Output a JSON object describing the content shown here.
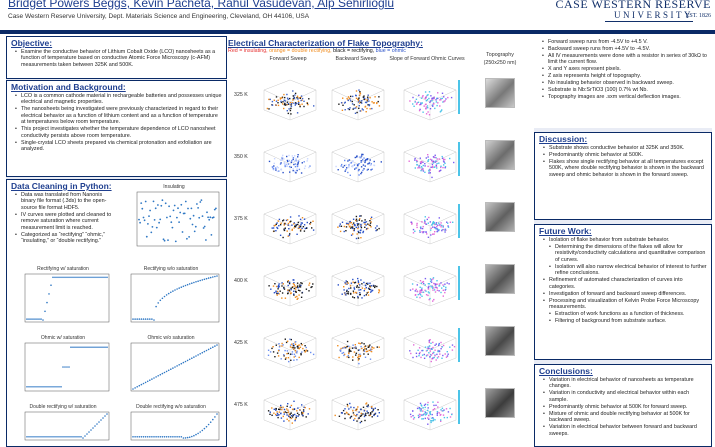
{
  "header": {
    "title": "Bridget Powers Beggs, Kevin Pacheta, Rahul Vasudevan, Alp Sehirlioglu",
    "affiliation": "Case Western Reserve University, Dept. Materials Science and Engineering, Cleveland, OH 44106, USA",
    "logo_top": "CASE WESTERN RESERVE",
    "logo_bottom": "UNIVERSITY",
    "logo_est": "EST. 1826"
  },
  "left": {
    "objective": {
      "heading": "Objective:",
      "items": [
        "Examine the conductive behavior of Lithium Cobalt Oxide (LCO) nanosheets as a function of temperature based on conductive Atomic Force Microscopy (c-AFM) measurements taken between 325K and 500K."
      ]
    },
    "motivation": {
      "heading": "Motivation and Background:",
      "items": [
        "LCO is a common cathode material in rechargeable batteries and possesses unique electrical and magnetic properties.",
        "The nanosheets being investigated were previously characterized in regard to their electrical behavior as a function of lithium content and as a function of temperature at temperatures below room temperature.",
        "This project investigates whether the temperature dependence of LCO nanosheet conductivity persists above room temperature.",
        "Single-crystal LCO sheets prepared via chemical protonation and exfoliation are analyzed."
      ]
    },
    "cleaning": {
      "heading": "Data Cleaning in Python:",
      "items": [
        "Data was translated from Nanonis binary file format (.3ds) to the open-source file format HDF5.",
        "IV curves were plotted and cleaned to remove saturation where current measurement limit is reached.",
        "Categorized as “rectifying” “ohmic,” “insulating,” or “double rectifying.”"
      ],
      "plots": {
        "insulating": "Insulating",
        "rect_sat": "Rectifying w/ saturation",
        "rect_nosat": "Rectifying w/o saturation",
        "ohmic_sat": "Ohmic w/ saturation",
        "ohmic_nosat": "Ohmic w/o saturation",
        "dbl_sat": "Double rectifying w/ saturation",
        "dbl_nosat": "Double rectifying w/o saturation"
      },
      "xlabel": "Voltage"
    }
  },
  "middle": {
    "title": "Electrical Characterization of Flake Topography:",
    "legend": [
      {
        "text": "Red = insulating,",
        "color": "#e63232"
      },
      {
        "text": " orange = double rectifying,",
        "color": "#f08c1e"
      },
      {
        "text": " black = rectifying,",
        "color": "#111111"
      },
      {
        "text": " blue = ohmic",
        "color": "#2850c8"
      }
    ],
    "columns": [
      "Forward Sweep",
      "Backward Sweep",
      "Slope of Forward Ohmic Curves",
      "Topography"
    ],
    "topo_sub": "(250x250 nm)",
    "temperatures": [
      "325 K",
      "350 K",
      "375 K",
      "400 K",
      "425 K",
      "475 K"
    ]
  },
  "right": {
    "notes": [
      "Forward sweep runs from -4.5V to +4.5 V.",
      "Backward sweep runs from +4.5V to -4.5V.",
      "All IV measurements were done with a resistor in series of 30kΩ to limit the current flow.",
      "X and Y axes represent pixels.",
      "Z axis represents height of topography.",
      "No insulating behavior observed in backward sweep.",
      "Substrate is Nb:SrTiO3 (100) 0.7% wt Nb.",
      "Topography images are .sxm vertical deflection images."
    ],
    "discussion": {
      "heading": "Discussion:",
      "items": [
        "Substrate shows conductive behavior at 325K and 350K.",
        "Predominantly ohmic behavior at 500K.",
        "Flakes show single rectifying behavior at all temperatures except 500K, where double rectifying behavior is shown in the backward sweep and ohmic behavior is shown in the forward sweep."
      ]
    },
    "future": {
      "heading": "Future Work:",
      "items": [
        {
          "t": "Isolation of flake behavior from substrate behavior.",
          "sub": false
        },
        {
          "t": "Determining the dimensions of the flakes will allow for resistivity/conductivity calculations and quantitative comparison of curves.",
          "sub": true
        },
        {
          "t": "Isolation will also narrow electrical behavior of interest to further refine conclusions.",
          "sub": true
        },
        {
          "t": "Refinement of automated characterization of curves into categories.",
          "sub": false
        },
        {
          "t": "Investigation of forward and backward sweep differences.",
          "sub": false
        },
        {
          "t": "Processing and visualization of Kelvin Probe Force Microscopy measurements.",
          "sub": false
        },
        {
          "t": "Extraction of work functions as a function of thickness.",
          "sub": true
        },
        {
          "t": "Filtering of background from substrate surface.",
          "sub": true
        }
      ]
    },
    "conclusions": {
      "heading": "Conclusions:",
      "items": [
        "Variation in electrical behavior of nanosheets as temperature changes.",
        "Variation in conductivity and electrical behavior within each sample.",
        "Predominantly ohmic behavior at 500K for forward sweep.",
        "Mixture of ohmic and double rectifying behavior at 500K for backward sweep.",
        "Variation in electrical behavior between forward and backward sweeps."
      ]
    }
  },
  "colors": {
    "navy": "#0a2a66",
    "heading": "#1f3f8f",
    "panel": "#e9ecf5",
    "plot_blue": "#2f78c4"
  }
}
